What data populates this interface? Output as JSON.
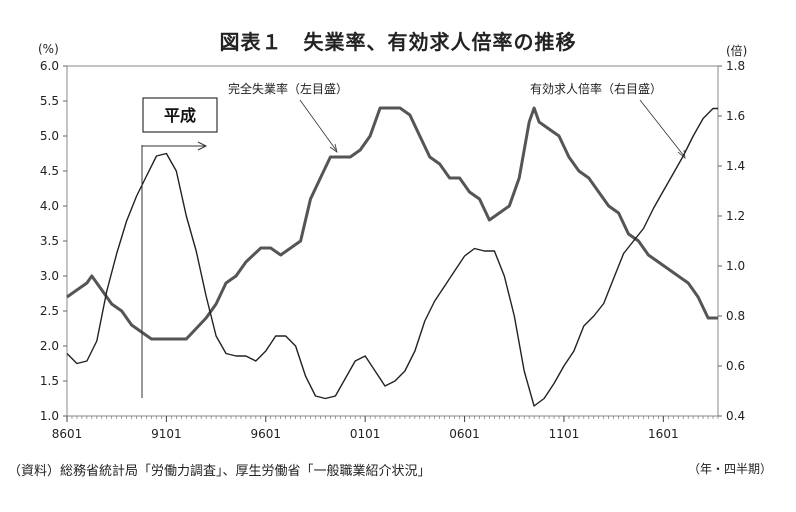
{
  "chart_data": {
    "type": "line",
    "title": "図表１　失業率、有効求人倍率の推移",
    "left_unit": "(%)",
    "right_unit": "(倍)",
    "x_unit": "（年・四半期）",
    "source": "（資料）総務省統計局「労働力調査」、厚生労働省「一般職業紹介状況」",
    "x_start_quarter": "1986Q1",
    "x_end_quarter": "2018Q4",
    "x_ticks": [
      "8601",
      "9101",
      "9601",
      "0101",
      "0601",
      "1101",
      "1601"
    ],
    "y_left": {
      "min": 1.0,
      "max": 6.0,
      "ticks": [
        "1.0",
        "1.5",
        "2.0",
        "2.5",
        "3.0",
        "3.5",
        "4.0",
        "4.5",
        "5.0",
        "5.5",
        "6.0"
      ]
    },
    "y_right": {
      "min": 0.4,
      "max": 1.8,
      "ticks": [
        "0.4",
        "0.6",
        "0.8",
        "1.0",
        "1.2",
        "1.4",
        "1.6",
        "1.8"
      ]
    },
    "annotations": {
      "heisei": "平成",
      "unemployment_label": "完全失業率（左目盛）",
      "job_ratio_label": "有効求人倍率（右目盛）"
    },
    "series": [
      {
        "name": "完全失業率（左目盛）",
        "axis": "left",
        "color": "#555555",
        "points": [
          [
            "1986Q1",
            2.7
          ],
          [
            "1986Q3",
            2.8
          ],
          [
            "1987Q1",
            2.9
          ],
          [
            "1987Q2",
            3.0
          ],
          [
            "1987Q4",
            2.8
          ],
          [
            "1988Q2",
            2.6
          ],
          [
            "1988Q4",
            2.5
          ],
          [
            "1989Q2",
            2.3
          ],
          [
            "1989Q4",
            2.2
          ],
          [
            "1990Q2",
            2.1
          ],
          [
            "1991Q1",
            2.1
          ],
          [
            "1992Q1",
            2.1
          ],
          [
            "1993Q1",
            2.4
          ],
          [
            "1993Q3",
            2.6
          ],
          [
            "1994Q1",
            2.9
          ],
          [
            "1994Q3",
            3.0
          ],
          [
            "1995Q1",
            3.2
          ],
          [
            "1995Q4",
            3.4
          ],
          [
            "1996Q2",
            3.4
          ],
          [
            "1996Q4",
            3.3
          ],
          [
            "1997Q2",
            3.4
          ],
          [
            "1997Q4",
            3.5
          ],
          [
            "1998Q2",
            4.1
          ],
          [
            "1998Q4",
            4.4
          ],
          [
            "1999Q2",
            4.7
          ],
          [
            "1999Q4",
            4.7
          ],
          [
            "2000Q2",
            4.7
          ],
          [
            "2000Q4",
            4.8
          ],
          [
            "2001Q2",
            5.0
          ],
          [
            "2001Q4",
            5.4
          ],
          [
            "2002Q2",
            5.4
          ],
          [
            "2002Q4",
            5.4
          ],
          [
            "2003Q2",
            5.3
          ],
          [
            "2003Q4",
            5.0
          ],
          [
            "2004Q2",
            4.7
          ],
          [
            "2004Q4",
            4.6
          ],
          [
            "2005Q2",
            4.4
          ],
          [
            "2005Q4",
            4.4
          ],
          [
            "2006Q2",
            4.2
          ],
          [
            "2006Q4",
            4.1
          ],
          [
            "2007Q2",
            3.8
          ],
          [
            "2007Q4",
            3.9
          ],
          [
            "2008Q2",
            4.0
          ],
          [
            "2008Q4",
            4.4
          ],
          [
            "2009Q2",
            5.2
          ],
          [
            "2009Q3",
            5.4
          ],
          [
            "2009Q4",
            5.2
          ],
          [
            "2010Q2",
            5.1
          ],
          [
            "2010Q4",
            5.0
          ],
          [
            "2011Q2",
            4.7
          ],
          [
            "2011Q4",
            4.5
          ],
          [
            "2012Q2",
            4.4
          ],
          [
            "2012Q4",
            4.2
          ],
          [
            "2013Q2",
            4.0
          ],
          [
            "2013Q4",
            3.9
          ],
          [
            "2014Q2",
            3.6
          ],
          [
            "2014Q4",
            3.5
          ],
          [
            "2015Q2",
            3.3
          ],
          [
            "2015Q4",
            3.2
          ],
          [
            "2016Q2",
            3.1
          ],
          [
            "2016Q4",
            3.0
          ],
          [
            "2017Q2",
            2.9
          ],
          [
            "2017Q4",
            2.7
          ],
          [
            "2018Q2",
            2.4
          ],
          [
            "2018Q4",
            2.4
          ]
        ]
      },
      {
        "name": "有効求人倍率（右目盛）",
        "axis": "right",
        "color": "#222222",
        "points": [
          [
            "1986Q1",
            0.65
          ],
          [
            "1986Q3",
            0.61
          ],
          [
            "1987Q1",
            0.62
          ],
          [
            "1987Q3",
            0.7
          ],
          [
            "1988Q1",
            0.9
          ],
          [
            "1988Q3",
            1.05
          ],
          [
            "1989Q1",
            1.18
          ],
          [
            "1989Q3",
            1.28
          ],
          [
            "1990Q1",
            1.36
          ],
          [
            "1990Q3",
            1.44
          ],
          [
            "1991Q1",
            1.45
          ],
          [
            "1991Q3",
            1.38
          ],
          [
            "1992Q1",
            1.2
          ],
          [
            "1992Q3",
            1.06
          ],
          [
            "1993Q1",
            0.88
          ],
          [
            "1993Q3",
            0.72
          ],
          [
            "1994Q1",
            0.65
          ],
          [
            "1994Q3",
            0.64
          ],
          [
            "1995Q1",
            0.64
          ],
          [
            "1995Q3",
            0.62
          ],
          [
            "1996Q1",
            0.66
          ],
          [
            "1996Q3",
            0.72
          ],
          [
            "1997Q1",
            0.72
          ],
          [
            "1997Q3",
            0.68
          ],
          [
            "1998Q1",
            0.56
          ],
          [
            "1998Q3",
            0.48
          ],
          [
            "1999Q1",
            0.47
          ],
          [
            "1999Q3",
            0.48
          ],
          [
            "2000Q1",
            0.55
          ],
          [
            "2000Q3",
            0.62
          ],
          [
            "2001Q1",
            0.64
          ],
          [
            "2001Q3",
            0.58
          ],
          [
            "2002Q1",
            0.52
          ],
          [
            "2002Q3",
            0.54
          ],
          [
            "2003Q1",
            0.58
          ],
          [
            "2003Q3",
            0.66
          ],
          [
            "2004Q1",
            0.78
          ],
          [
            "2004Q3",
            0.86
          ],
          [
            "2005Q1",
            0.92
          ],
          [
            "2005Q3",
            0.98
          ],
          [
            "2006Q1",
            1.04
          ],
          [
            "2006Q3",
            1.07
          ],
          [
            "2007Q1",
            1.06
          ],
          [
            "2007Q3",
            1.06
          ],
          [
            "2008Q1",
            0.96
          ],
          [
            "2008Q3",
            0.8
          ],
          [
            "2009Q1",
            0.58
          ],
          [
            "2009Q3",
            0.44
          ],
          [
            "2010Q1",
            0.47
          ],
          [
            "2010Q3",
            0.53
          ],
          [
            "2011Q1",
            0.6
          ],
          [
            "2011Q3",
            0.66
          ],
          [
            "2012Q1",
            0.76
          ],
          [
            "2012Q3",
            0.8
          ],
          [
            "2013Q1",
            0.85
          ],
          [
            "2013Q3",
            0.95
          ],
          [
            "2014Q1",
            1.05
          ],
          [
            "2014Q3",
            1.1
          ],
          [
            "2015Q1",
            1.15
          ],
          [
            "2015Q3",
            1.23
          ],
          [
            "2016Q1",
            1.3
          ],
          [
            "2016Q3",
            1.37
          ],
          [
            "2017Q1",
            1.44
          ],
          [
            "2017Q3",
            1.52
          ],
          [
            "2018Q1",
            1.59
          ],
          [
            "2018Q3",
            1.63
          ],
          [
            "2018Q4",
            1.63
          ]
        ]
      }
    ]
  }
}
